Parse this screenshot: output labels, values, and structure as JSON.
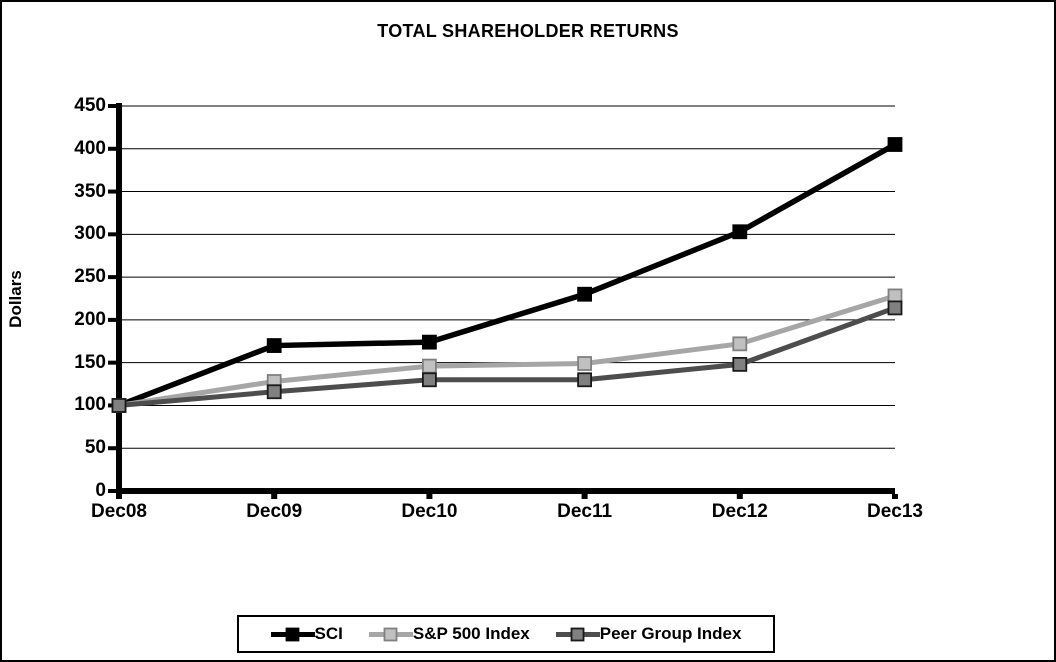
{
  "chart_data": {
    "type": "line",
    "title": "TOTAL SHAREHOLDER RETURNS",
    "ylabel": "Dollars",
    "xlabel": "",
    "categories": [
      "Dec08",
      "Dec09",
      "Dec10",
      "Dec11",
      "Dec12",
      "Dec13"
    ],
    "series": [
      {
        "name": "SCI",
        "values": [
          100,
          170,
          174,
          230,
          303,
          405
        ],
        "line_color": "#000000",
        "marker_fill": "#000000",
        "marker_stroke": "#000000"
      },
      {
        "name": "S&P 500 Index",
        "values": [
          100,
          128,
          146,
          149,
          172,
          228
        ],
        "line_color": "#a6a6a6",
        "marker_fill": "#c0c0c0",
        "marker_stroke": "#808080"
      },
      {
        "name": "Peer Group Index",
        "values": [
          100,
          116,
          130,
          130,
          148,
          214
        ],
        "line_color": "#4d4d4d",
        "marker_fill": "#808080",
        "marker_stroke": "#1a1a1a"
      }
    ],
    "ylim": [
      0,
      450
    ],
    "ytick_step": 50,
    "grid": true,
    "legend_position": "bottom",
    "background_color": "#ffffff",
    "border_color": "#000000"
  }
}
